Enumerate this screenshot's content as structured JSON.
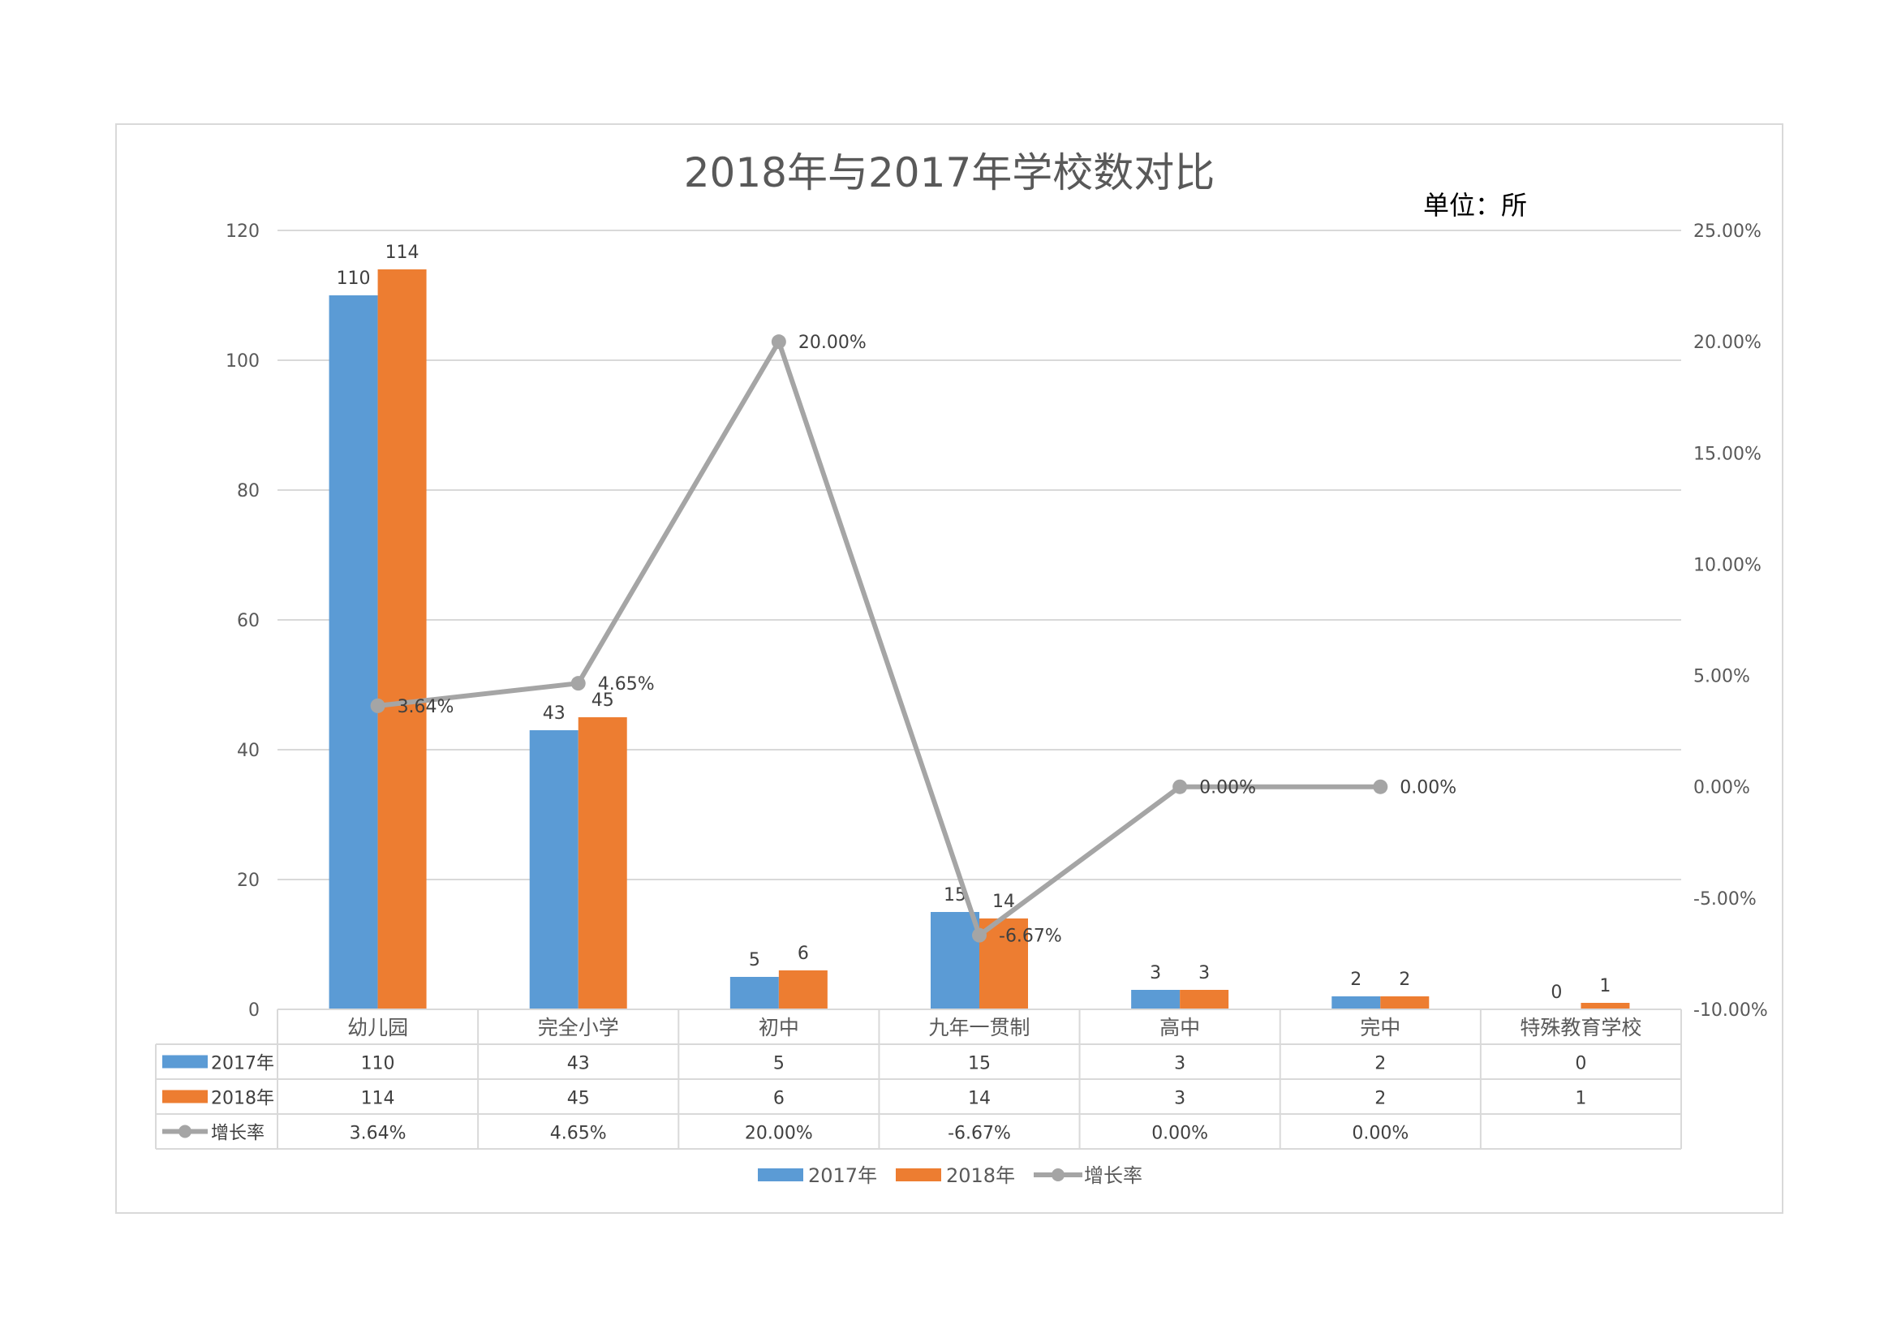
{
  "chart_data": {
    "type": "bar",
    "title": "2018年与2017年学校数对比",
    "unit_label": "单位：所",
    "categories": [
      "幼儿园",
      "完全小学",
      "初中",
      "九年一贯制",
      "高中",
      "完中",
      "特殊教育学校"
    ],
    "series": [
      {
        "name": "2017年",
        "type": "bar",
        "color": "#5b9bd5",
        "values": [
          110,
          43,
          5,
          15,
          3,
          2,
          0
        ]
      },
      {
        "name": "2018年",
        "type": "bar",
        "color": "#ed7d31",
        "values": [
          114,
          45,
          6,
          14,
          3,
          2,
          1
        ]
      },
      {
        "name": "增长率",
        "type": "line",
        "axis": "secondary",
        "color": "#a5a5a5",
        "values": [
          3.64,
          4.65,
          20.0,
          -6.67,
          0.0,
          0.0,
          null
        ],
        "labels": [
          "3.64%",
          "4.65%",
          "20.00%",
          "-6.67%",
          "0.00%",
          "0.00%",
          ""
        ]
      }
    ],
    "ylim": [
      0,
      120
    ],
    "yticks": [
      "0",
      "20",
      "40",
      "60",
      "80",
      "100",
      "120"
    ],
    "y2lim": [
      -10,
      25
    ],
    "y2ticks": [
      "-10.00%",
      "-5.00%",
      "0.00%",
      "5.00%",
      "10.00%",
      "15.00%",
      "20.00%",
      "25.00%"
    ],
    "grid": true,
    "data_table": true,
    "legend_placement": "bottom"
  }
}
